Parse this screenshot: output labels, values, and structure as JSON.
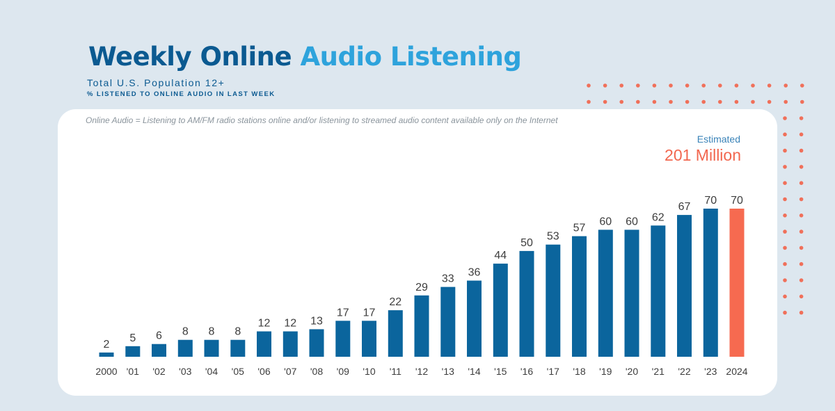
{
  "header": {
    "title_part1": "Weekly Online",
    "title_part2": "Audio Listening",
    "subtitle": "Total U.S. Population 12+",
    "subtitle2": "% LISTENED TO ONLINE AUDIO IN LAST WEEK"
  },
  "note": "Online Audio = Listening to AM/FM radio stations online and/or listening to streamed audio content available only on the Internet",
  "estimate": {
    "label": "Estimated",
    "value": "201 Million"
  },
  "colors": {
    "bar": "#0b659d",
    "highlight": "#f66a50",
    "dots": "#f0705a",
    "title_dark": "#0b5a91",
    "title_light": "#2ea3dc"
  },
  "chart_data": {
    "type": "bar",
    "title": "Weekly Online Audio Listening",
    "subtitle": "Total U.S. Population 12+",
    "xlabel": "",
    "ylabel": "",
    "ylim": [
      0,
      70
    ],
    "grid": false,
    "categories": [
      "2000",
      "'01",
      "'02",
      "'03",
      "'04",
      "'05",
      "'06",
      "'07",
      "'08",
      "'09",
      "'10",
      "'11",
      "'12",
      "'13",
      "'14",
      "'15",
      "'16",
      "'17",
      "'18",
      "'19",
      "'20",
      "'21",
      "'22",
      "'23",
      "2024"
    ],
    "values": [
      2,
      5,
      6,
      8,
      8,
      8,
      12,
      12,
      13,
      17,
      17,
      22,
      29,
      33,
      36,
      44,
      50,
      53,
      57,
      60,
      60,
      62,
      67,
      70,
      70
    ],
    "highlight_index": 24
  }
}
